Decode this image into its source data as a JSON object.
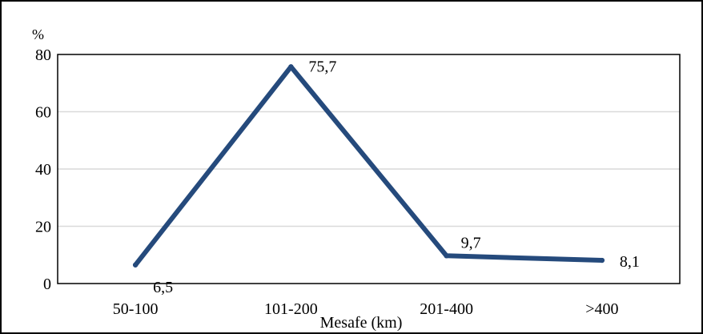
{
  "chart_data": {
    "type": "line",
    "title": "",
    "xlabel": "Mesafe (km)",
    "ylabel": "%",
    "categories": [
      "50-100",
      "101-200",
      "201-400",
      ">400"
    ],
    "series": [
      {
        "values": [
          6.5,
          75.7,
          9.7,
          8.1
        ],
        "data_labels": [
          "6,5",
          "75,7",
          "9,7",
          "8,1"
        ],
        "color": "#254A7C"
      }
    ],
    "ylim": [
      0,
      80
    ],
    "yticks": [
      0,
      20,
      40,
      60,
      80
    ],
    "ytick_labels": [
      "0",
      "20",
      "40",
      "60",
      "80"
    ],
    "grid": true,
    "legend": "none"
  }
}
